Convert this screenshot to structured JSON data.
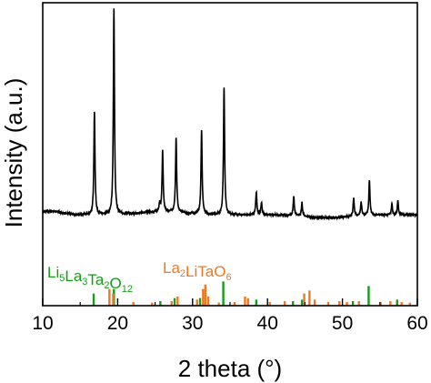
{
  "chart_data": {
    "type": "line",
    "xlabel": "2 theta (°)",
    "ylabel": "Intensity (a.u.)",
    "xlim": [
      10,
      60
    ],
    "xticks": [
      10,
      20,
      30,
      40,
      50,
      60
    ],
    "grid": false,
    "legend_placement": "bottom-left",
    "series": [
      {
        "kind": "pattern",
        "color": "#000000",
        "baseline": 0.3,
        "peaks": [
          {
            "x": 16.9,
            "y": 0.64
          },
          {
            "x": 19.5,
            "y": 0.98
          },
          {
            "x": 25.6,
            "y": 0.025
          },
          {
            "x": 26.0,
            "y": 0.5
          },
          {
            "x": 27.8,
            "y": 0.545
          },
          {
            "x": 31.2,
            "y": 0.575
          },
          {
            "x": 34.2,
            "y": 0.72
          },
          {
            "x": 38.5,
            "y": 0.375
          },
          {
            "x": 39.2,
            "y": 0.34
          },
          {
            "x": 43.5,
            "y": 0.365
          },
          {
            "x": 44.6,
            "y": 0.345
          },
          {
            "x": 51.5,
            "y": 0.36
          },
          {
            "x": 52.5,
            "y": 0.345
          },
          {
            "x": 53.6,
            "y": 0.415
          },
          {
            "x": 56.6,
            "y": 0.335
          },
          {
            "x": 57.4,
            "y": 0.345
          }
        ]
      },
      {
        "name": "Li5La3Ta2O12",
        "kind": "reference",
        "color": "#1a9a1a",
        "label_parts": [
          {
            "text": "Li",
            "sub": "5"
          },
          {
            "text": "La",
            "sub": "3"
          },
          {
            "text": "Ta",
            "sub": "2"
          },
          {
            "text": "O",
            "sub": "12"
          }
        ],
        "sticks": [
          {
            "x": 16.8,
            "y": 0.04
          },
          {
            "x": 19.5,
            "y": 0.055
          },
          {
            "x": 25.7,
            "y": 0.015
          },
          {
            "x": 27.6,
            "y": 0.025
          },
          {
            "x": 31.0,
            "y": 0.025
          },
          {
            "x": 34.1,
            "y": 0.08
          },
          {
            "x": 38.5,
            "y": 0.02
          },
          {
            "x": 43.4,
            "y": 0.015
          },
          {
            "x": 44.6,
            "y": 0.02
          },
          {
            "x": 51.4,
            "y": 0.015
          },
          {
            "x": 53.5,
            "y": 0.065
          },
          {
            "x": 57.3,
            "y": 0.02
          }
        ]
      },
      {
        "name": "La2LiTaO6",
        "kind": "reference",
        "color": "#f07820",
        "label_parts": [
          {
            "text": "La",
            "sub": "2"
          },
          {
            "text": "LiTaO",
            "sub": "6"
          }
        ],
        "sticks": [
          {
            "x": 18.9,
            "y": 0.055
          },
          {
            "x": 19.4,
            "y": 0.04
          },
          {
            "x": 22.1,
            "y": 0.012
          },
          {
            "x": 24.6,
            "y": 0.01
          },
          {
            "x": 27.2,
            "y": 0.015
          },
          {
            "x": 28.0,
            "y": 0.03
          },
          {
            "x": 30.6,
            "y": 0.02
          },
          {
            "x": 31.4,
            "y": 0.055
          },
          {
            "x": 31.7,
            "y": 0.07
          },
          {
            "x": 32.1,
            "y": 0.03
          },
          {
            "x": 33.5,
            "y": 0.01
          },
          {
            "x": 35.6,
            "y": 0.012
          },
          {
            "x": 37.0,
            "y": 0.03
          },
          {
            "x": 37.4,
            "y": 0.025
          },
          {
            "x": 40.3,
            "y": 0.012
          },
          {
            "x": 42.3,
            "y": 0.015
          },
          {
            "x": 44.9,
            "y": 0.04
          },
          {
            "x": 45.6,
            "y": 0.05
          },
          {
            "x": 46.3,
            "y": 0.02
          },
          {
            "x": 48.1,
            "y": 0.012
          },
          {
            "x": 49.6,
            "y": 0.015
          },
          {
            "x": 50.6,
            "y": 0.012
          },
          {
            "x": 52.2,
            "y": 0.015
          },
          {
            "x": 55.1,
            "y": 0.012
          },
          {
            "x": 56.4,
            "y": 0.015
          },
          {
            "x": 57.9,
            "y": 0.012
          },
          {
            "x": 59.0,
            "y": 0.01
          }
        ]
      }
    ]
  }
}
